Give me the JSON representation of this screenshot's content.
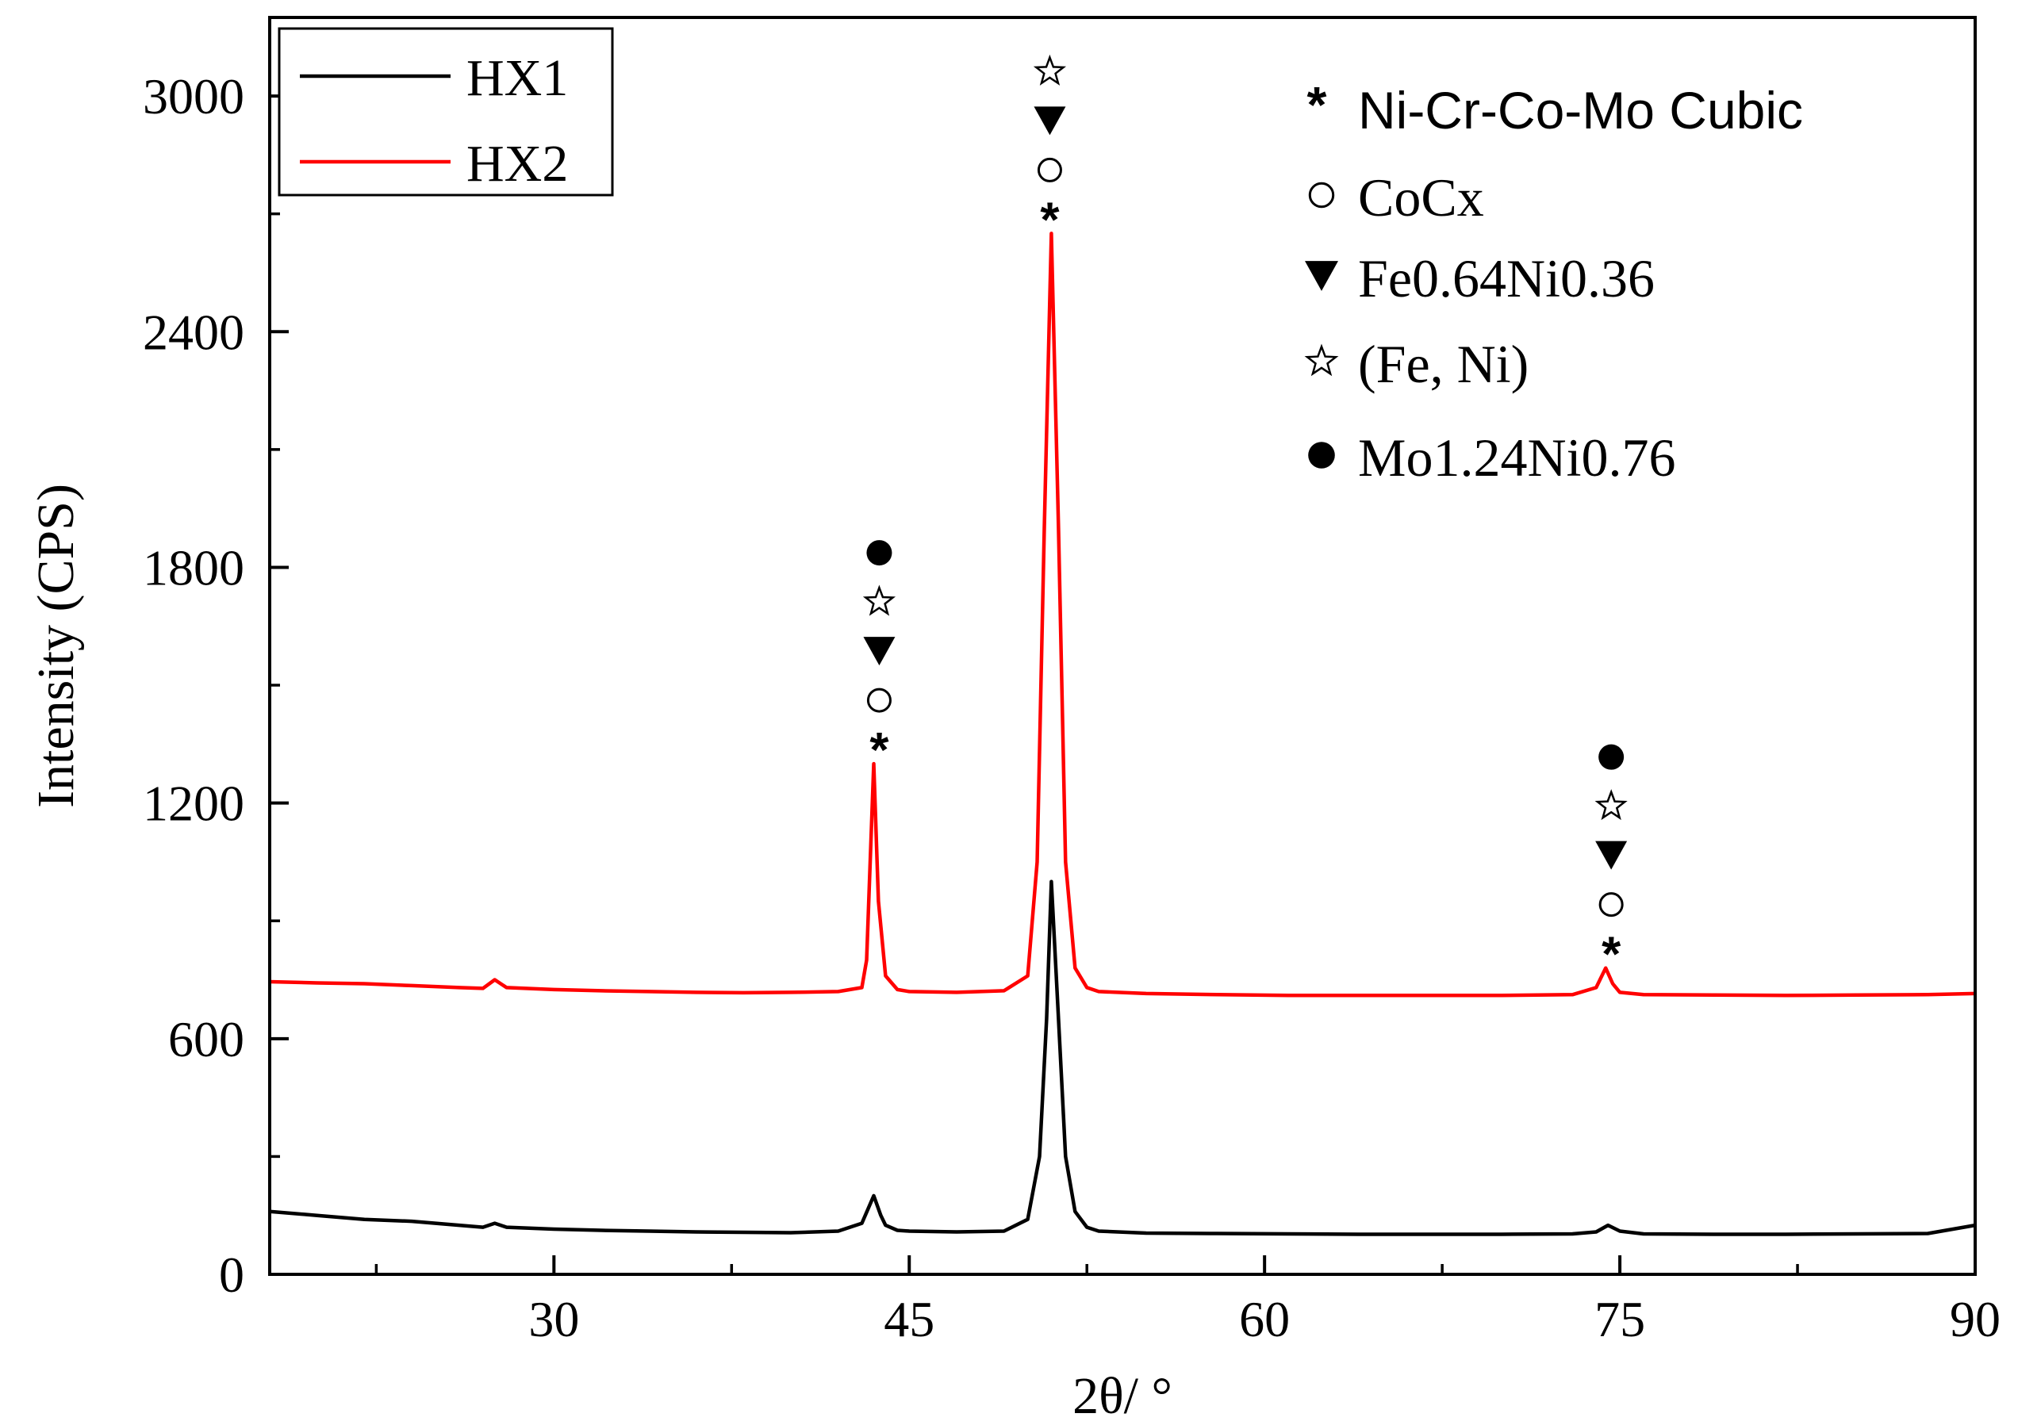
{
  "chart_data": {
    "type": "line",
    "xlabel": "2θ/  °",
    "ylabel": "Intensity (CPS)",
    "xlim": [
      18,
      90
    ],
    "ylim": [
      0,
      3200
    ],
    "x_ticks": [
      30,
      45,
      60,
      75,
      90
    ],
    "y_ticks": [
      0,
      600,
      1200,
      1800,
      2400,
      3000
    ],
    "grid": false,
    "legend_placement": "top-left",
    "series": [
      {
        "name": "HX1",
        "color": "#000000",
        "x": [
          18,
          20,
          22,
          24,
          26,
          27,
          27.5,
          28,
          30,
          32,
          34,
          36,
          38,
          40,
          42,
          43,
          43.5,
          43.8,
          44,
          44.5,
          45,
          47,
          49,
          50,
          50.5,
          50.8,
          51,
          51.3,
          51.6,
          52,
          52.5,
          53,
          55,
          58,
          61,
          64,
          67,
          70,
          73,
          74,
          74.5,
          75,
          76,
          79,
          82,
          85,
          88,
          90
        ],
        "values": [
          160,
          150,
          140,
          135,
          125,
          120,
          130,
          120,
          115,
          112,
          110,
          108,
          107,
          106,
          110,
          130,
          200,
          150,
          125,
          112,
          110,
          108,
          110,
          140,
          300,
          650,
          1000,
          650,
          300,
          160,
          120,
          110,
          105,
          104,
          103,
          102,
          102,
          102,
          103,
          108,
          125,
          110,
          103,
          102,
          102,
          103,
          104,
          125
        ]
      },
      {
        "name": "HX2",
        "color": "#ff0000",
        "x": [
          18,
          20,
          22,
          24,
          26,
          27,
          27.5,
          28,
          30,
          32,
          34,
          36,
          38,
          40,
          42,
          43,
          43.2,
          43.5,
          43.7,
          44,
          44.5,
          45,
          47,
          49,
          50,
          50.4,
          50.7,
          51,
          51.3,
          51.6,
          52,
          52.5,
          53,
          55,
          58,
          61,
          64,
          67,
          70,
          73,
          74,
          74.4,
          74.7,
          75,
          76,
          79,
          82,
          85,
          88,
          90
        ],
        "values": [
          745,
          742,
          740,
          735,
          730,
          728,
          750,
          730,
          725,
          722,
          720,
          718,
          717,
          718,
          720,
          730,
          800,
          1300,
          950,
          760,
          725,
          720,
          718,
          722,
          760,
          1050,
          1900,
          2650,
          1900,
          1050,
          780,
          730,
          720,
          715,
          712,
          710,
          710,
          710,
          710,
          712,
          730,
          780,
          740,
          718,
          712,
          711,
          710,
          711,
          712,
          715
        ]
      }
    ],
    "peak_markers": [
      {
        "x": 43.6,
        "symbols": [
          "asterisk",
          "open-circle",
          "filled-triangle-down",
          "open-star",
          "filled-circle"
        ]
      },
      {
        "x": 50.8,
        "symbols": [
          "asterisk",
          "open-circle",
          "filled-triangle-down",
          "open-star"
        ]
      },
      {
        "x": 74.5,
        "symbols": [
          "asterisk",
          "open-circle",
          "filled-triangle-down",
          "open-star",
          "filled-circle"
        ]
      }
    ],
    "phase_legend": [
      {
        "symbol": "asterisk",
        "label": "Ni-Cr-Co-Mo Cubic"
      },
      {
        "symbol": "open-circle",
        "label": "CoCx"
      },
      {
        "symbol": "filled-triangle-down",
        "label": "Fe0.64Ni0.36"
      },
      {
        "symbol": "open-star",
        "label": "(Fe, Ni)"
      },
      {
        "symbol": "filled-circle",
        "label": "Mo1.24Ni0.76"
      }
    ]
  }
}
